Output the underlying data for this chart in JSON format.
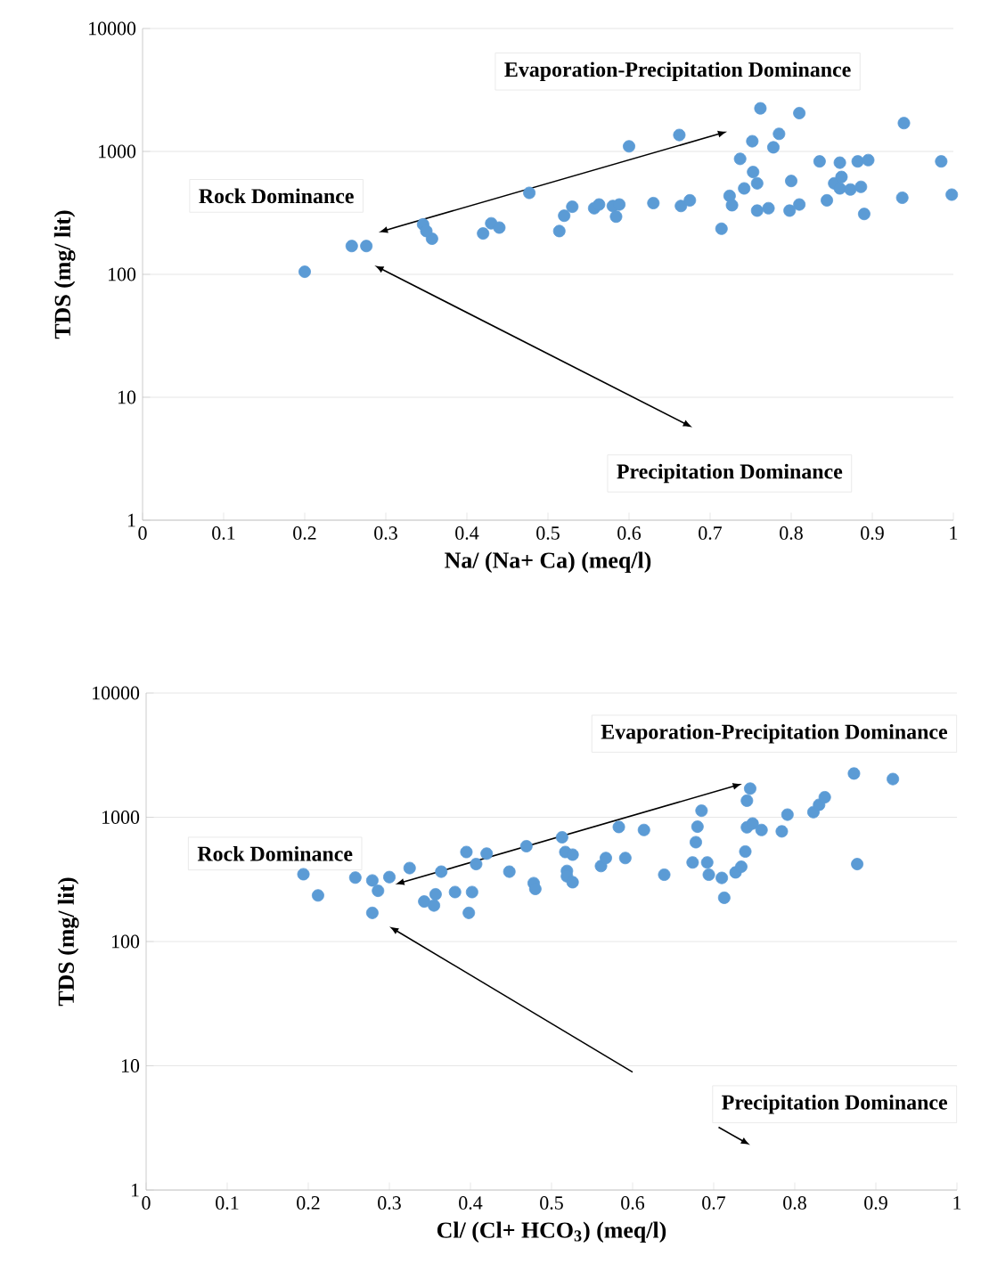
{
  "chart_data": [
    {
      "type": "scatter",
      "xlabel": "Na/ (Na+ Ca) (meq/l)",
      "ylabel": "TDS (mg/ lit)",
      "color": "#5b9bd5",
      "log": "y",
      "grid": "y",
      "xlim": [
        0,
        1
      ],
      "xticks": [
        0,
        0.1,
        0.2,
        0.3,
        0.4,
        0.5,
        0.6,
        0.7,
        0.8,
        0.9,
        1
      ],
      "ylim": [
        1,
        10000
      ],
      "yticks": [
        1,
        10,
        100,
        1000,
        10000
      ],
      "annotations": [
        "Evaporation-Precipitation Dominance",
        "Rock Dominance",
        "Precipitation Dominance"
      ],
      "x": [
        0.2,
        0.258,
        0.276,
        0.346,
        0.357,
        0.35,
        0.42,
        0.43,
        0.44,
        0.477,
        0.514,
        0.52,
        0.53,
        0.557,
        0.563,
        0.58,
        0.584,
        0.588,
        0.6,
        0.63,
        0.664,
        0.675,
        0.662,
        0.714,
        0.724,
        0.727,
        0.737,
        0.742,
        0.753,
        0.752,
        0.758,
        0.758,
        0.762,
        0.772,
        0.778,
        0.785,
        0.798,
        0.8,
        0.806,
        0.81,
        0.81,
        0.835,
        0.844,
        0.853,
        0.86,
        0.86,
        0.862,
        0.873,
        0.882,
        0.886,
        0.89,
        0.895,
        0.939,
        0.937,
        0.985,
        0.998
      ],
      "values": [
        105,
        170,
        170,
        255,
        195,
        225,
        215,
        260,
        240,
        460,
        225,
        300,
        355,
        345,
        370,
        360,
        295,
        370,
        1100,
        380,
        360,
        400,
        1360,
        235,
        435,
        365,
        870,
        500,
        680,
        1210,
        550,
        330,
        2240,
        345,
        1080,
        1390,
        330,
        575,
        null,
        2050,
        370,
        830,
        400,
        550,
        500,
        810,
        620,
        490,
        830,
        515,
        310,
        850,
        1700,
        420,
        830,
        445
      ]
    },
    {
      "type": "scatter",
      "xlabel": "Cl/ (Cl+ HCO$_{3}$) (meq/l)",
      "ylabel": "TDS (mg/ lit)",
      "color": "#5b9bd5",
      "log": "y",
      "grid": "y",
      "xlim": [
        0,
        1
      ],
      "xticks": [
        0,
        0.1,
        0.2,
        0.3,
        0.4,
        0.5,
        0.6,
        0.7,
        0.8,
        0.9,
        1
      ],
      "ylim": [
        1,
        10000
      ],
      "yticks": [
        1,
        10,
        100,
        1000,
        10000
      ],
      "annotations": [
        "Evaporation-Precipitation Dominance",
        "Rock Dominance",
        "Precipitation Dominance"
      ],
      "x": [
        0.194,
        0.212,
        0.258,
        0.279,
        0.286,
        0.279,
        0.325,
        0.3,
        0.364,
        0.343,
        0.357,
        0.355,
        0.381,
        0.392,
        0.395,
        0.402,
        0.398,
        0.407,
        0.42,
        0.448,
        0.469,
        0.478,
        0.48,
        0.513,
        0.517,
        0.526,
        0.519,
        0.519,
        0.526,
        0.561,
        0.567,
        0.583,
        0.591,
        0.614,
        0.639,
        0.674,
        0.685,
        0.68,
        0.678,
        0.692,
        0.694,
        0.71,
        0.713,
        0.727,
        0.734,
        0.739,
        0.741,
        0.748,
        0.759,
        0.741,
        0.745,
        0.784,
        0.791,
        0.823,
        0.83,
        0.837,
        0.873,
        0.877,
        0.921
      ],
      "values": [
        348,
        235,
        327,
        310,
        256,
        170,
        390,
        330,
        365,
        210,
        240,
        195,
        250,
        null,
        525,
        250,
        170,
        420,
        510,
        365,
        585,
        295,
        265,
        690,
        525,
        500,
        370,
        335,
        300,
        405,
        470,
        835,
        470,
        790,
        345,
        433,
        1130,
        840,
        630,
        433,
        345,
        325,
        225,
        360,
        400,
        530,
        830,
        890,
        790,
        1360,
        1700,
        770,
        1050,
        1100,
        1260,
        1450,
        2250,
        420,
        2030
      ]
    }
  ]
}
